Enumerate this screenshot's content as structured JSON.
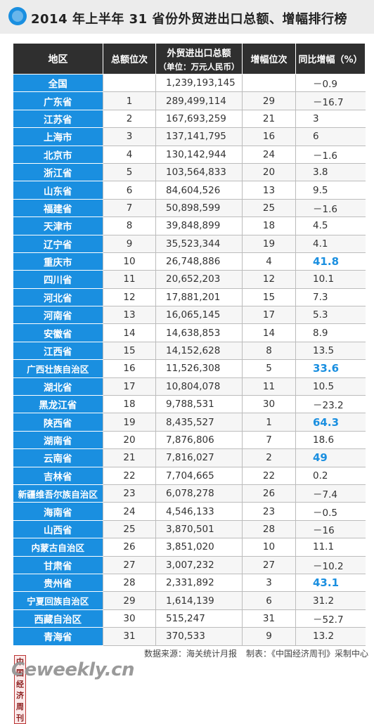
{
  "title": "2014 年上半年 31 省份外贸进出口总额、增幅排行榜",
  "table": {
    "headers": {
      "region": "地区",
      "total_rank": "总额位次",
      "total_value": "外贸进出口总额",
      "total_unit": "（单位：万元人民币）",
      "growth_rank": "增幅位次",
      "growth_rate": "同比增幅（%）"
    },
    "rows": [
      {
        "region": "全国",
        "total_rank": "",
        "total": "1,239,193,145",
        "growth_rank": "",
        "growth": "－0.9",
        "highlight": false
      },
      {
        "region": "广东省",
        "total_rank": "1",
        "total": "289,499,114",
        "growth_rank": "29",
        "growth": "－16.7",
        "highlight": false
      },
      {
        "region": "江苏省",
        "total_rank": "2",
        "total": "167,693,259",
        "growth_rank": "21",
        "growth": "3",
        "highlight": false
      },
      {
        "region": "上海市",
        "total_rank": "3",
        "total": "137,141,795",
        "growth_rank": "16",
        "growth": "6",
        "highlight": false
      },
      {
        "region": "北京市",
        "total_rank": "4",
        "total": "130,142,944",
        "growth_rank": "24",
        "growth": "－1.6",
        "highlight": false
      },
      {
        "region": "浙江省",
        "total_rank": "5",
        "total": "103,564,833",
        "growth_rank": "20",
        "growth": "3.8",
        "highlight": false
      },
      {
        "region": "山东省",
        "total_rank": "6",
        "total": "84,604,526",
        "growth_rank": "13",
        "growth": "9.5",
        "highlight": false
      },
      {
        "region": "福建省",
        "total_rank": "7",
        "total": "50,898,599",
        "growth_rank": "25",
        "growth": "－1.6",
        "highlight": false
      },
      {
        "region": "天津市",
        "total_rank": "8",
        "total": "39,848,899",
        "growth_rank": "18",
        "growth": "4.5",
        "highlight": false
      },
      {
        "region": "辽宁省",
        "total_rank": "9",
        "total": "35,523,344",
        "growth_rank": "19",
        "growth": "4.1",
        "highlight": false
      },
      {
        "region": "重庆市",
        "total_rank": "10",
        "total": "26,748,886",
        "growth_rank": "4",
        "growth": "41.8",
        "highlight": true
      },
      {
        "region": "四川省",
        "total_rank": "11",
        "total": "20,652,203",
        "growth_rank": "12",
        "growth": "10.1",
        "highlight": false
      },
      {
        "region": "河北省",
        "total_rank": "12",
        "total": "17,881,201",
        "growth_rank": "15",
        "growth": "7.3",
        "highlight": false
      },
      {
        "region": "河南省",
        "total_rank": "13",
        "total": "16,065,145",
        "growth_rank": "17",
        "growth": "5.3",
        "highlight": false
      },
      {
        "region": "安徽省",
        "total_rank": "14",
        "total": "14,638,853",
        "growth_rank": "14",
        "growth": "8.9",
        "highlight": false
      },
      {
        "region": "江西省",
        "total_rank": "15",
        "total": "14,152,628",
        "growth_rank": "8",
        "growth": "13.5",
        "highlight": false
      },
      {
        "region": "广西壮族自治区",
        "total_rank": "16",
        "total": "11,526,308",
        "growth_rank": "5",
        "growth": "33.6",
        "highlight": true
      },
      {
        "region": "湖北省",
        "total_rank": "17",
        "total": "10,804,078",
        "growth_rank": "11",
        "growth": "10.5",
        "highlight": false
      },
      {
        "region": "黑龙江省",
        "total_rank": "18",
        "total": "9,788,531",
        "growth_rank": "30",
        "growth": "－23.2",
        "highlight": false
      },
      {
        "region": "陕西省",
        "total_rank": "19",
        "total": "8,435,527",
        "growth_rank": "1",
        "growth": "64.3",
        "highlight": true
      },
      {
        "region": "湖南省",
        "total_rank": "20",
        "total": "7,876,806",
        "growth_rank": "7",
        "growth": "18.6",
        "highlight": false
      },
      {
        "region": "云南省",
        "total_rank": "21",
        "total": "7,816,027",
        "growth_rank": "2",
        "growth": "49",
        "highlight": true
      },
      {
        "region": "吉林省",
        "total_rank": "22",
        "total": "7,704,665",
        "growth_rank": "22",
        "growth": "0.2",
        "highlight": false
      },
      {
        "region": "新疆维吾尔族自治区",
        "total_rank": "23",
        "total": "6,078,278",
        "growth_rank": "26",
        "growth": "－7.4",
        "highlight": false
      },
      {
        "region": "海南省",
        "total_rank": "24",
        "total": "4,546,133",
        "growth_rank": "23",
        "growth": "－0.5",
        "highlight": false
      },
      {
        "region": "山西省",
        "total_rank": "25",
        "total": "3,870,501",
        "growth_rank": "28",
        "growth": "－16",
        "highlight": false
      },
      {
        "region": "内蒙古自治区",
        "total_rank": "26",
        "total": "3,851,020",
        "growth_rank": "10",
        "growth": "11.1",
        "highlight": false
      },
      {
        "region": "甘肃省",
        "total_rank": "27",
        "total": "3,007,232",
        "growth_rank": "27",
        "growth": "－10.2",
        "highlight": false
      },
      {
        "region": "贵州省",
        "total_rank": "28",
        "total": "2,331,892",
        "growth_rank": "3",
        "growth": "43.1",
        "highlight": true
      },
      {
        "region": "宁夏回族自治区",
        "total_rank": "29",
        "total": "1,614,139",
        "growth_rank": "6",
        "growth": "31.2",
        "highlight": false
      },
      {
        "region": "西藏自治区",
        "total_rank": "30",
        "total": "515,247",
        "growth_rank": "31",
        "growth": "－52.7",
        "highlight": false
      },
      {
        "region": "青海省",
        "total_rank": "31",
        "total": "370,533",
        "growth_rank": "9",
        "growth": "13.2",
        "highlight": false
      }
    ]
  },
  "footer": {
    "logo_cn": "中国经济周刊",
    "logo_text": "Ceweekly.cn",
    "source": "数据来源：海关统计月报",
    "maker": "制表：《中国经济周刊》采制中心"
  },
  "colors": {
    "accent": "#1a8fe0",
    "header": "#2f2f2f"
  },
  "chart_data": {
    "type": "table",
    "title": "2014 年上半年 31 省份外贸进出口总额、增幅排行榜",
    "columns": [
      "地区",
      "总额位次",
      "外贸进出口总额（单位：万元人民币）",
      "增幅位次",
      "同比增幅（%）"
    ]
  }
}
